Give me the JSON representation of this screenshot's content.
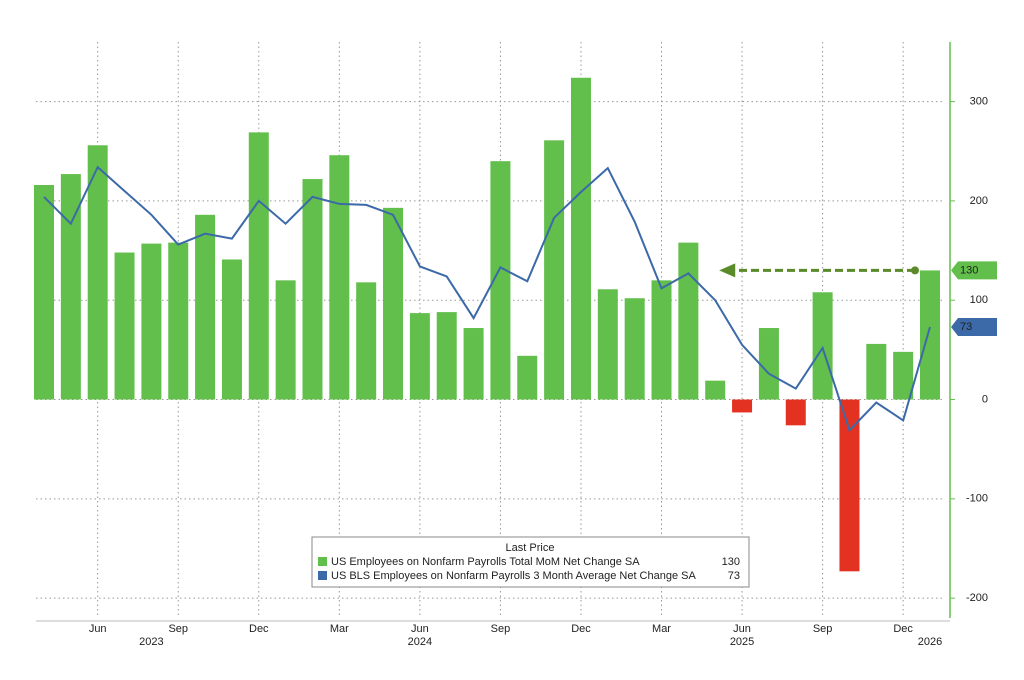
{
  "chart_data": {
    "type": "bar_line",
    "categories": [
      null,
      null,
      "Jun",
      null,
      null,
      "Sep",
      null,
      null,
      "Dec",
      null,
      null,
      "Mar",
      null,
      null,
      "Jun",
      null,
      null,
      "Sep",
      null,
      null,
      "Dec",
      null,
      null,
      "Mar",
      null,
      null,
      "Jun",
      null,
      null,
      "Sep",
      null,
      null,
      "Dec",
      null
    ],
    "year_labels": [
      null,
      null,
      null,
      null,
      "2023",
      null,
      null,
      null,
      null,
      null,
      null,
      null,
      null,
      null,
      "2024",
      null,
      null,
      null,
      null,
      null,
      null,
      null,
      null,
      null,
      null,
      null,
      "2025",
      null,
      null,
      null,
      null,
      null,
      null,
      "2026"
    ],
    "series": [
      {
        "name": "US Employees on Nonfarm Payrolls Total MoM Net Change SA",
        "type": "bar",
        "color": "#62bf4c",
        "negative_color": "#e33222",
        "values": [
          216,
          227,
          256,
          148,
          157,
          158,
          186,
          141,
          269,
          120,
          222,
          246,
          118,
          193,
          87,
          88,
          72,
          240,
          44,
          261,
          324,
          111,
          102,
          120,
          158,
          19,
          -13,
          72,
          -26,
          108,
          -173,
          56,
          48,
          130
        ]
      },
      {
        "name": "US BLS Employees on Nonfarm Payrolls 3 Month Average Net Change SA",
        "type": "line",
        "color": "#3c69a8",
        "values": [
          204,
          177,
          234,
          210,
          186,
          156,
          167,
          162,
          200,
          177,
          204,
          197,
          196,
          186,
          134,
          124,
          82,
          133,
          119,
          183,
          209,
          233,
          179,
          112,
          127,
          100,
          55,
          26,
          11,
          52,
          -31,
          -3,
          -21,
          73
        ]
      }
    ],
    "legend_title": "Last Price",
    "ylim": [
      -220,
      360
    ],
    "yticks": [
      -200,
      -100,
      0,
      100,
      200,
      300
    ],
    "grid": true,
    "axis_side": "right",
    "annotation_arrow": {
      "color": "#5a8a2a",
      "from_index": 33,
      "to_index": 25
    }
  }
}
